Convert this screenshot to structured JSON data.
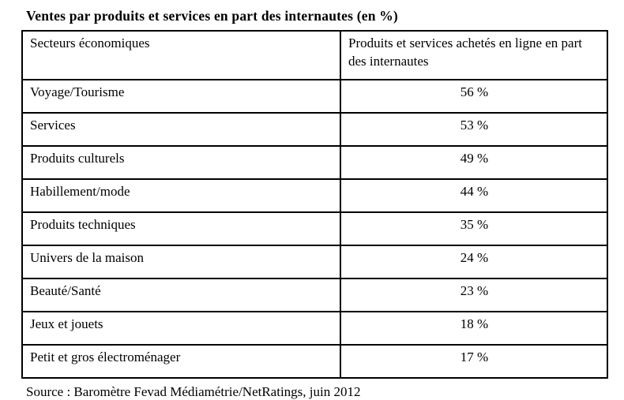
{
  "title": "Ventes par produits et services en part des internautes (en %)",
  "table": {
    "headers": {
      "sector": "Secteurs économiques",
      "value": "Produits et services achetés en ligne en part des internautes"
    },
    "rows": [
      {
        "sector": "Voyage/Tourisme",
        "value": "56 %"
      },
      {
        "sector": "Services",
        "value": "53 %"
      },
      {
        "sector": "Produits culturels",
        "value": "49 %"
      },
      {
        "sector": "Habillement/mode",
        "value": "44 %"
      },
      {
        "sector": "Produits techniques",
        "value": "35 %"
      },
      {
        "sector": "Univers de la maison",
        "value": "24 %"
      },
      {
        "sector": "Beauté/Santé",
        "value": "23 %"
      },
      {
        "sector": "Jeux et jouets",
        "value": "18 %"
      },
      {
        "sector": "Petit et gros électroménager",
        "value": "17 %"
      }
    ]
  },
  "source": "Source : Baromètre Fevad Médiamétrie/NetRatings, juin 2012",
  "colors": {
    "text": "#000000",
    "background": "#ffffff",
    "border": "#000000"
  }
}
